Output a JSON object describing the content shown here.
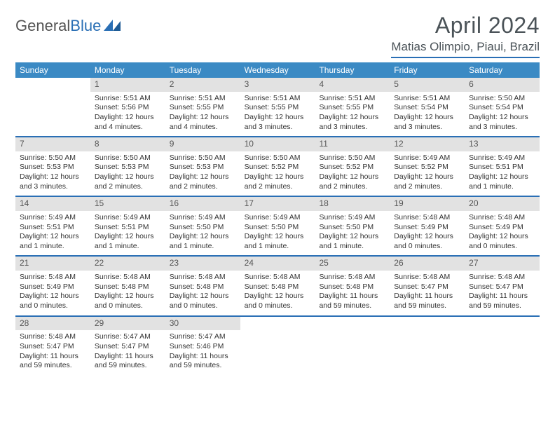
{
  "logo": {
    "text_a": "General",
    "text_b": "Blue"
  },
  "header": {
    "title": "April 2024",
    "location": "Matias Olimpio, Piaui, Brazil"
  },
  "colors": {
    "header_bar": "#3b8ac4",
    "accent_line": "#2a6fb5",
    "daynum_bg": "#e2e2e2",
    "text": "#333333",
    "title": "#4b5358"
  },
  "weekdays": [
    "Sunday",
    "Monday",
    "Tuesday",
    "Wednesday",
    "Thursday",
    "Friday",
    "Saturday"
  ],
  "weeks": [
    [
      {
        "n": "",
        "sr": "",
        "ss": "",
        "dl": ""
      },
      {
        "n": "1",
        "sr": "Sunrise: 5:51 AM",
        "ss": "Sunset: 5:56 PM",
        "dl": "Daylight: 12 hours and 4 minutes."
      },
      {
        "n": "2",
        "sr": "Sunrise: 5:51 AM",
        "ss": "Sunset: 5:55 PM",
        "dl": "Daylight: 12 hours and 4 minutes."
      },
      {
        "n": "3",
        "sr": "Sunrise: 5:51 AM",
        "ss": "Sunset: 5:55 PM",
        "dl": "Daylight: 12 hours and 3 minutes."
      },
      {
        "n": "4",
        "sr": "Sunrise: 5:51 AM",
        "ss": "Sunset: 5:55 PM",
        "dl": "Daylight: 12 hours and 3 minutes."
      },
      {
        "n": "5",
        "sr": "Sunrise: 5:51 AM",
        "ss": "Sunset: 5:54 PM",
        "dl": "Daylight: 12 hours and 3 minutes."
      },
      {
        "n": "6",
        "sr": "Sunrise: 5:50 AM",
        "ss": "Sunset: 5:54 PM",
        "dl": "Daylight: 12 hours and 3 minutes."
      }
    ],
    [
      {
        "n": "7",
        "sr": "Sunrise: 5:50 AM",
        "ss": "Sunset: 5:53 PM",
        "dl": "Daylight: 12 hours and 3 minutes."
      },
      {
        "n": "8",
        "sr": "Sunrise: 5:50 AM",
        "ss": "Sunset: 5:53 PM",
        "dl": "Daylight: 12 hours and 2 minutes."
      },
      {
        "n": "9",
        "sr": "Sunrise: 5:50 AM",
        "ss": "Sunset: 5:53 PM",
        "dl": "Daylight: 12 hours and 2 minutes."
      },
      {
        "n": "10",
        "sr": "Sunrise: 5:50 AM",
        "ss": "Sunset: 5:52 PM",
        "dl": "Daylight: 12 hours and 2 minutes."
      },
      {
        "n": "11",
        "sr": "Sunrise: 5:50 AM",
        "ss": "Sunset: 5:52 PM",
        "dl": "Daylight: 12 hours and 2 minutes."
      },
      {
        "n": "12",
        "sr": "Sunrise: 5:49 AM",
        "ss": "Sunset: 5:52 PM",
        "dl": "Daylight: 12 hours and 2 minutes."
      },
      {
        "n": "13",
        "sr": "Sunrise: 5:49 AM",
        "ss": "Sunset: 5:51 PM",
        "dl": "Daylight: 12 hours and 1 minute."
      }
    ],
    [
      {
        "n": "14",
        "sr": "Sunrise: 5:49 AM",
        "ss": "Sunset: 5:51 PM",
        "dl": "Daylight: 12 hours and 1 minute."
      },
      {
        "n": "15",
        "sr": "Sunrise: 5:49 AM",
        "ss": "Sunset: 5:51 PM",
        "dl": "Daylight: 12 hours and 1 minute."
      },
      {
        "n": "16",
        "sr": "Sunrise: 5:49 AM",
        "ss": "Sunset: 5:50 PM",
        "dl": "Daylight: 12 hours and 1 minute."
      },
      {
        "n": "17",
        "sr": "Sunrise: 5:49 AM",
        "ss": "Sunset: 5:50 PM",
        "dl": "Daylight: 12 hours and 1 minute."
      },
      {
        "n": "18",
        "sr": "Sunrise: 5:49 AM",
        "ss": "Sunset: 5:50 PM",
        "dl": "Daylight: 12 hours and 1 minute."
      },
      {
        "n": "19",
        "sr": "Sunrise: 5:48 AM",
        "ss": "Sunset: 5:49 PM",
        "dl": "Daylight: 12 hours and 0 minutes."
      },
      {
        "n": "20",
        "sr": "Sunrise: 5:48 AM",
        "ss": "Sunset: 5:49 PM",
        "dl": "Daylight: 12 hours and 0 minutes."
      }
    ],
    [
      {
        "n": "21",
        "sr": "Sunrise: 5:48 AM",
        "ss": "Sunset: 5:49 PM",
        "dl": "Daylight: 12 hours and 0 minutes."
      },
      {
        "n": "22",
        "sr": "Sunrise: 5:48 AM",
        "ss": "Sunset: 5:48 PM",
        "dl": "Daylight: 12 hours and 0 minutes."
      },
      {
        "n": "23",
        "sr": "Sunrise: 5:48 AM",
        "ss": "Sunset: 5:48 PM",
        "dl": "Daylight: 12 hours and 0 minutes."
      },
      {
        "n": "24",
        "sr": "Sunrise: 5:48 AM",
        "ss": "Sunset: 5:48 PM",
        "dl": "Daylight: 12 hours and 0 minutes."
      },
      {
        "n": "25",
        "sr": "Sunrise: 5:48 AM",
        "ss": "Sunset: 5:48 PM",
        "dl": "Daylight: 11 hours and 59 minutes."
      },
      {
        "n": "26",
        "sr": "Sunrise: 5:48 AM",
        "ss": "Sunset: 5:47 PM",
        "dl": "Daylight: 11 hours and 59 minutes."
      },
      {
        "n": "27",
        "sr": "Sunrise: 5:48 AM",
        "ss": "Sunset: 5:47 PM",
        "dl": "Daylight: 11 hours and 59 minutes."
      }
    ],
    [
      {
        "n": "28",
        "sr": "Sunrise: 5:48 AM",
        "ss": "Sunset: 5:47 PM",
        "dl": "Daylight: 11 hours and 59 minutes."
      },
      {
        "n": "29",
        "sr": "Sunrise: 5:47 AM",
        "ss": "Sunset: 5:47 PM",
        "dl": "Daylight: 11 hours and 59 minutes."
      },
      {
        "n": "30",
        "sr": "Sunrise: 5:47 AM",
        "ss": "Sunset: 5:46 PM",
        "dl": "Daylight: 11 hours and 59 minutes."
      },
      {
        "n": "",
        "sr": "",
        "ss": "",
        "dl": ""
      },
      {
        "n": "",
        "sr": "",
        "ss": "",
        "dl": ""
      },
      {
        "n": "",
        "sr": "",
        "ss": "",
        "dl": ""
      },
      {
        "n": "",
        "sr": "",
        "ss": "",
        "dl": ""
      }
    ]
  ]
}
